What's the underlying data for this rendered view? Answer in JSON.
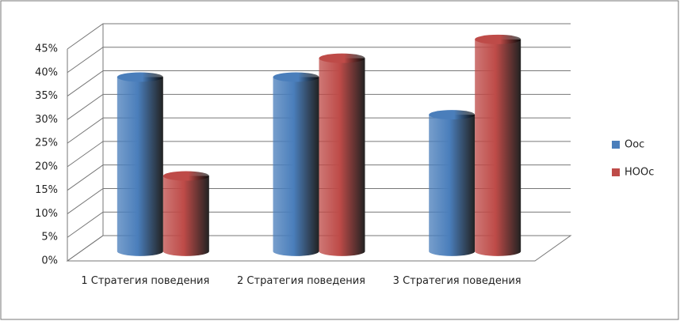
{
  "chart_data": {
    "type": "bar3d",
    "categories": [
      "1 Стратегия поведения",
      "2 Стратегия поведения",
      "3 Стратегия поведения"
    ],
    "series": [
      {
        "name": "Оос",
        "color": "#4a7ebb",
        "values": [
          37,
          37,
          29
        ]
      },
      {
        "name": "НООс",
        "color": "#be4b48",
        "values": [
          16,
          41,
          45
        ]
      }
    ],
    "ylim": [
      0,
      45
    ],
    "yticks": [
      {
        "value": 0,
        "label": "0%"
      },
      {
        "value": 5,
        "label": "5%"
      },
      {
        "value": 10,
        "label": "10%"
      },
      {
        "value": 15,
        "label": "15%"
      },
      {
        "value": 20,
        "label": "20%"
      },
      {
        "value": 25,
        "label": "25%"
      },
      {
        "value": 30,
        "label": "30%"
      },
      {
        "value": 35,
        "label": "35%"
      },
      {
        "value": 40,
        "label": "40%"
      },
      {
        "value": 45,
        "label": "45%"
      }
    ],
    "grid": true,
    "legend": "right"
  }
}
